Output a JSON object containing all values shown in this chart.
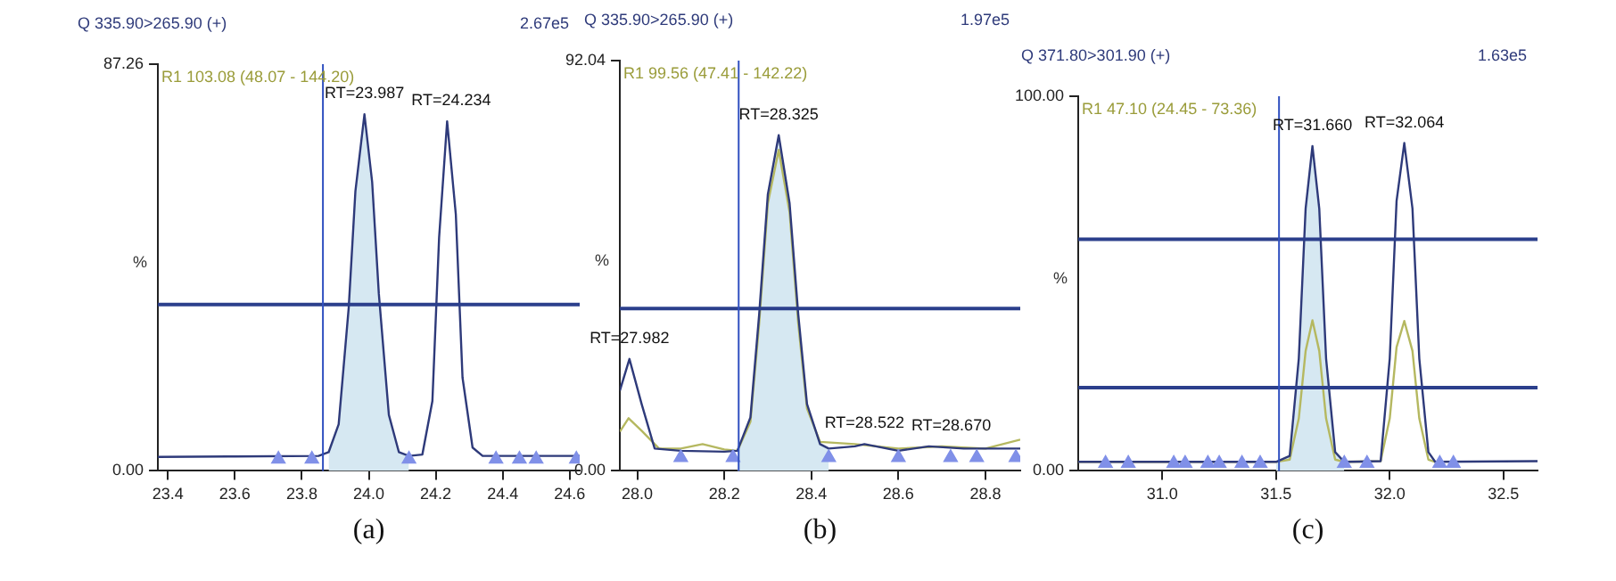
{
  "chart_data": [
    {
      "type": "line",
      "title": "Q 335.90>265.90 (+)",
      "ylabel": "%",
      "annotations": [
        "2.67e5",
        "R1 103.08 (48.07 - 144.20)",
        "(a)",
        {
          "text": "RT=23.987",
          "x": 23.987,
          "y": 76.5
        },
        {
          "text": "RT=24.234",
          "x": 24.234,
          "y": 75
        }
      ],
      "xlim": [
        23.37,
        24.63
      ],
      "ylim": [
        0,
        87.26
      ],
      "xticks": [
        {
          "value": 23.4,
          "label": "23.4"
        },
        {
          "value": 23.6,
          "label": "23.6"
        },
        {
          "value": 23.8,
          "label": "23.8"
        },
        {
          "value": 24,
          "label": "24.0"
        },
        {
          "value": 24.2,
          "label": "24.2"
        },
        {
          "value": 24.4,
          "label": "24.4"
        },
        {
          "value": 24.6,
          "label": "24.6"
        }
      ],
      "yticks": [
        {
          "value": 0,
          "label": "0.00"
        },
        {
          "value": 87.26,
          "label": "87.26"
        }
      ],
      "ref_lines": [
        {
          "axis": "y",
          "value": 35.7,
          "color": "#2b3f8c"
        },
        {
          "axis": "x",
          "value": 23.863,
          "color": "#3050c0"
        }
      ],
      "series": [
        {
          "type": "scatter",
          "marker": "triangle",
          "color": "#8090e8",
          "x": [
            23.73,
            23.83,
            24.12,
            24.38,
            24.45,
            24.5,
            24.62
          ],
          "values": [
            2.5,
            2.5,
            2.5,
            2.5,
            2.5,
            2.5,
            2.5
          ]
        },
        {
          "type": "line",
          "color": "#2e3a7a",
          "x": [
            23.37,
            23.6,
            23.85,
            23.88,
            23.91,
            23.94,
            23.96,
            23.987,
            24.01,
            24.03,
            24.06,
            24.09,
            24.12,
            24.16,
            24.19,
            24.21,
            24.234,
            24.26,
            24.28,
            24.31,
            24.34,
            24.63
          ],
          "values": [
            3,
            3.1,
            3.2,
            4,
            10,
            35,
            60,
            76.5,
            62,
            38,
            12,
            4,
            3.2,
            3.5,
            15,
            50,
            75,
            55,
            20,
            5,
            3.2,
            3.2
          ]
        },
        {
          "type": "area",
          "color": "#d6e8f2",
          "x": [
            23.88,
            23.91,
            23.94,
            23.96,
            23.987,
            24.01,
            24.03,
            24.06,
            24.09,
            24.12
          ],
          "values": [
            4,
            10,
            35,
            60,
            76.5,
            62,
            38,
            12,
            4,
            3.2
          ]
        }
      ]
    },
    {
      "type": "line",
      "title": "Q 335.90>265.90 (+)",
      "ylabel": "%",
      "annotations": [
        "1.97e5",
        "R1 99.56 (47.41 - 142.22)",
        "(b)",
        {
          "text": "RT=27.982",
          "x": 27.982,
          "y": 25.1
        },
        {
          "text": "RT=28.325",
          "x": 28.325,
          "y": 75.3
        },
        {
          "text": "RT=28.522",
          "x": 28.522,
          "y": 6
        },
        {
          "text": "RT=28.670",
          "x": 28.67,
          "y": 5.5
        }
      ],
      "xlim": [
        27.96,
        28.88
      ],
      "ylim": [
        0,
        92.04
      ],
      "xticks": [
        {
          "value": 28,
          "label": "28.0"
        },
        {
          "value": 28.2,
          "label": "28.2"
        },
        {
          "value": 28.4,
          "label": "28.4"
        },
        {
          "value": 28.6,
          "label": "28.6"
        },
        {
          "value": 28.8,
          "label": "28.8"
        }
      ],
      "yticks": [
        {
          "value": 0,
          "label": "0.00"
        },
        {
          "value": 92.04,
          "label": "92.04"
        }
      ],
      "ref_lines": [
        {
          "axis": "y",
          "value": 36.4,
          "color": "#2b3f8c"
        },
        {
          "axis": "x",
          "value": 28.233,
          "color": "#3050c0"
        }
      ],
      "series": [
        {
          "type": "scatter",
          "marker": "triangle",
          "color": "#8090e8",
          "x": [
            28.1,
            28.22,
            28.44,
            28.6,
            28.72,
            28.78,
            28.87
          ],
          "values": [
            3,
            3,
            3,
            3,
            3,
            3,
            3
          ]
        },
        {
          "type": "line",
          "color": "#2e3a7a",
          "x": [
            27.96,
            27.982,
            28.01,
            28.04,
            28.1,
            28.2,
            28.23,
            28.26,
            28.28,
            28.3,
            28.325,
            28.35,
            28.37,
            28.39,
            28.42,
            28.44,
            28.5,
            28.522,
            28.6,
            28.67,
            28.75,
            28.88
          ],
          "values": [
            18,
            25.1,
            15,
            5,
            4.5,
            4.3,
            4.5,
            12,
            35,
            62,
            75.3,
            60,
            35,
            15,
            6,
            5,
            5.5,
            6,
            4.5,
            5.5,
            5,
            5
          ]
        },
        {
          "type": "line",
          "color": "#b5b860",
          "x": [
            27.96,
            27.98,
            28.01,
            28.05,
            28.1,
            28.15,
            28.2,
            28.23,
            28.26,
            28.28,
            28.3,
            28.325,
            28.35,
            28.37,
            28.39,
            28.42,
            28.5,
            28.6,
            28.7,
            28.8,
            28.88
          ],
          "values": [
            8.8,
            11.8,
            9,
            5,
            5,
            6,
            4.8,
            4.5,
            11,
            33,
            60,
            72,
            58,
            33,
            14,
            6.5,
            6,
            5,
            5.5,
            5,
            7
          ]
        },
        {
          "type": "area",
          "color": "#d6e8f2",
          "x": [
            28.23,
            28.26,
            28.28,
            28.3,
            28.325,
            28.35,
            28.37,
            28.39,
            28.42,
            28.44
          ],
          "values": [
            4.5,
            12,
            35,
            62,
            75.3,
            60,
            35,
            15,
            6,
            5
          ]
        }
      ]
    },
    {
      "type": "line",
      "title": "Q 371.80>301.90 (+)",
      "ylabel": "%",
      "annotations": [
        "1.63e5",
        "R1 47.10 (24.45 - 73.36)",
        "(c)",
        {
          "text": "RT=31.660",
          "x": 31.66,
          "y": 86.7
        },
        {
          "text": "RT=32.064",
          "x": 32.064,
          "y": 87.5
        }
      ],
      "xlim": [
        30.63,
        32.65
      ],
      "ylim": [
        0,
        100
      ],
      "xticks": [
        {
          "value": 31,
          "label": "31.0"
        },
        {
          "value": 31.5,
          "label": "31.5"
        },
        {
          "value": 32,
          "label": "32.0"
        },
        {
          "value": 32.5,
          "label": "32.5"
        }
      ],
      "yticks": [
        {
          "value": 0,
          "label": "0.00"
        },
        {
          "value": 100,
          "label": "100.00"
        }
      ],
      "ref_lines": [
        {
          "axis": "y",
          "value": 61.8,
          "color": "#2b3f8c"
        },
        {
          "axis": "y",
          "value": 22.2,
          "color": "#2b3f8c"
        },
        {
          "axis": "x",
          "value": 31.513,
          "color": "#3050c0"
        }
      ],
      "series": [
        {
          "type": "scatter",
          "marker": "triangle",
          "color": "#8090e8",
          "x": [
            30.75,
            30.85,
            31.05,
            31.1,
            31.2,
            31.25,
            31.35,
            31.43,
            31.8,
            31.9,
            32.22,
            32.28
          ],
          "values": [
            2,
            2,
            2,
            2,
            2,
            2,
            2,
            2,
            2,
            2,
            2,
            2
          ]
        },
        {
          "type": "line",
          "color": "#2e3a7a",
          "x": [
            30.63,
            31,
            31.5,
            31.56,
            31.6,
            31.63,
            31.66,
            31.69,
            31.72,
            31.76,
            31.8,
            31.96,
            32.0,
            32.03,
            32.064,
            32.1,
            32.13,
            32.17,
            32.2,
            32.65
          ],
          "values": [
            2.4,
            2.4,
            2.4,
            4,
            30,
            70,
            86.7,
            70,
            30,
            5,
            2.4,
            2.6,
            30,
            72,
            87.5,
            70,
            30,
            5,
            2.4,
            2.6
          ]
        },
        {
          "type": "line",
          "color": "#b5b860",
          "x": [
            30.63,
            31.5,
            31.56,
            31.6,
            31.63,
            31.66,
            31.69,
            31.72,
            31.76,
            31.8,
            31.96,
            32.0,
            32.03,
            32.064,
            32.1,
            32.13,
            32.17,
            32.2
          ],
          "values": [
            2.4,
            2.4,
            3,
            14,
            32,
            40.2,
            32,
            14,
            3,
            2.4,
            2.6,
            14,
            33,
            40,
            32,
            14,
            3,
            2.4
          ]
        },
        {
          "type": "area",
          "color": "#d6e8f2",
          "x": [
            31.5,
            31.56,
            31.6,
            31.63,
            31.66,
            31.69,
            31.72,
            31.76,
            31.8
          ],
          "values": [
            2.4,
            4,
            30,
            70,
            86.7,
            70,
            30,
            5,
            2.4
          ]
        }
      ]
    }
  ]
}
